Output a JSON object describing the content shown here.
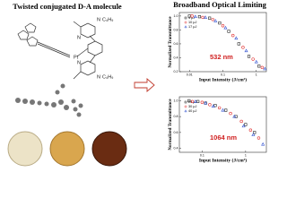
{
  "left": {
    "title": "Twisted conjugated D-A molecule",
    "atoms": [
      "Pt",
      "N",
      "C₄H₉",
      "N",
      "N",
      "C₄H₉",
      "N"
    ]
  },
  "header": {
    "title": "Broadband Optical Limiting"
  },
  "chart_data": [
    {
      "type": "scatter",
      "xlabel": "Input Intensity (J/cm²)",
      "ylabel": "Normalized Transmittance",
      "annotation": "532 nm",
      "log_x": true,
      "xlim": [
        0.005,
        2
      ],
      "xticks": [
        0.01,
        0.1,
        1
      ],
      "ylim": [
        0.2,
        1.05
      ],
      "yticks": [
        0.2,
        0.4,
        0.6,
        0.8,
        {
          "value": 1,
          "label": "1.0"
        }
      ],
      "series": [
        {
          "name": "4 μJ",
          "color": "#222222",
          "marker": "square",
          "x": [
            0.01,
            0.02,
            0.04,
            0.08,
            0.15,
            0.3,
            0.6,
            1.2
          ],
          "values": [
            1.0,
            0.99,
            0.97,
            0.9,
            0.78,
            0.6,
            0.42,
            0.28
          ]
        },
        {
          "name": "10 μJ",
          "color": "#e03030",
          "marker": "circle",
          "x": [
            0.012,
            0.025,
            0.05,
            0.1,
            0.2,
            0.4,
            0.8,
            1.5
          ],
          "values": [
            1.0,
            0.98,
            0.95,
            0.86,
            0.72,
            0.55,
            0.38,
            0.26
          ]
        },
        {
          "name": "17 μJ",
          "color": "#3050d0",
          "marker": "triangle",
          "x": [
            0.015,
            0.03,
            0.06,
            0.12,
            0.25,
            0.5,
            1.0,
            1.8
          ],
          "values": [
            0.99,
            0.98,
            0.93,
            0.83,
            0.68,
            0.5,
            0.34,
            0.24
          ]
        }
      ]
    },
    {
      "type": "scatter",
      "xlabel": "Input Intensity (J/cm²)",
      "ylabel": "Normalized Transmittance",
      "annotation": "1064 nm",
      "log_x": true,
      "xlim": [
        0.03,
        3
      ],
      "xticks": [
        0.1,
        1
      ],
      "ylim": [
        0.35,
        1.05
      ],
      "yticks": [
        0.4,
        0.6,
        0.8,
        {
          "value": 1,
          "label": "1.0"
        }
      ],
      "series": [
        {
          "name": "20 μJ",
          "color": "#222222",
          "marker": "square",
          "x": [
            0.05,
            0.08,
            0.12,
            0.2,
            0.35,
            0.6,
            1.0,
            1.6
          ],
          "values": [
            1.0,
            0.99,
            0.97,
            0.94,
            0.88,
            0.8,
            0.7,
            0.6
          ]
        },
        {
          "name": "30 μJ",
          "color": "#e03030",
          "marker": "circle",
          "x": [
            0.06,
            0.1,
            0.15,
            0.25,
            0.45,
            0.8,
            1.3,
            2.0
          ],
          "values": [
            0.99,
            0.98,
            0.95,
            0.91,
            0.84,
            0.74,
            0.63,
            0.53
          ]
        },
        {
          "name": "40 μJ",
          "color": "#3050d0",
          "marker": "triangle",
          "x": [
            0.07,
            0.12,
            0.18,
            0.3,
            0.55,
            0.9,
            1.5,
            2.5
          ],
          "values": [
            0.99,
            0.97,
            0.93,
            0.88,
            0.8,
            0.68,
            0.57,
            0.45
          ]
        }
      ]
    }
  ]
}
